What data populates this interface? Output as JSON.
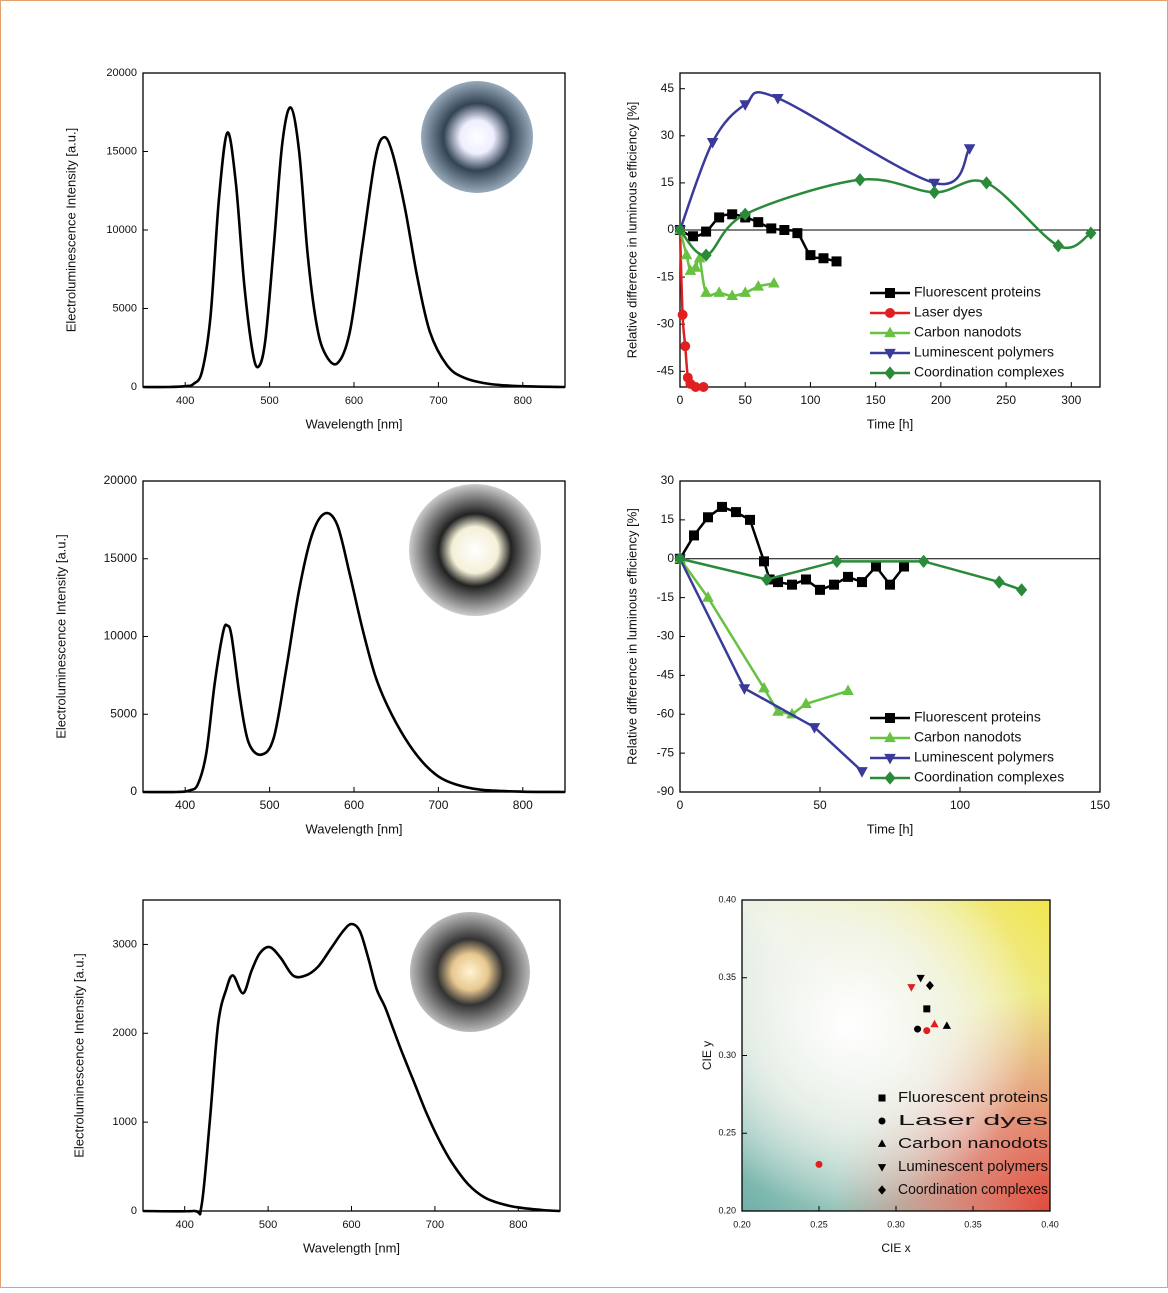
{
  "chart_data": [
    {
      "type": "line",
      "smooth": true,
      "color": "#000000",
      "xlabel": "Wavelength [nm]",
      "ylabel": "Electroluminescence Intensity [a.u.]",
      "xlim": [
        350,
        850
      ],
      "xticks": [
        400,
        500,
        600,
        700,
        800
      ],
      "ylim": [
        0,
        20000
      ],
      "yticks": [
        0,
        5000,
        10000,
        15000,
        20000
      ],
      "x": [
        350,
        380,
        400,
        410,
        420,
        430,
        440,
        450,
        460,
        470,
        480,
        487,
        495,
        505,
        515,
        525,
        535,
        545,
        555,
        565,
        580,
        595,
        610,
        625,
        635,
        645,
        660,
        675,
        690,
        710,
        730,
        760,
        800,
        850
      ],
      "values": [
        0,
        0,
        50,
        200,
        1000,
        4500,
        12000,
        16200,
        13000,
        6500,
        2200,
        1300,
        3000,
        9000,
        15500,
        17800,
        15000,
        8500,
        4200,
        2200,
        1500,
        3500,
        9000,
        14500,
        15900,
        15000,
        11500,
        7000,
        3500,
        1400,
        600,
        200,
        50,
        0
      ]
    },
    {
      "type": "line",
      "smooth": true,
      "legend": "lower right",
      "hline": 0,
      "xlabel": "Time [h]",
      "ylabel": "Relative difference in luminous efficiency [%]",
      "xlim": [
        0,
        322
      ],
      "xticks": [
        0,
        50,
        100,
        150,
        200,
        250,
        300
      ],
      "ylim": [
        -50,
        50
      ],
      "yticks": [
        -45,
        -30,
        -15,
        0,
        15,
        30,
        45
      ],
      "series": [
        {
          "name": "Fluorescent proteins",
          "color": "#000000",
          "marker": "square",
          "x": [
            0,
            10,
            20,
            30,
            40,
            50,
            60,
            70,
            80,
            90,
            100,
            110,
            120
          ],
          "values": [
            0,
            -2,
            -0.5,
            4,
            5,
            4,
            2.5,
            0.5,
            0,
            -1,
            -8,
            -9,
            -10
          ]
        },
        {
          "name": "Laser dyes",
          "color": "#e02020",
          "marker": "circle",
          "x": [
            0,
            2,
            4,
            6,
            8,
            12,
            18
          ],
          "values": [
            0,
            -27,
            -37,
            -47,
            -49,
            -50,
            -50
          ]
        },
        {
          "name": "Carbon nanodots",
          "color": "#66c240",
          "marker": "triangle",
          "x": [
            0,
            5,
            8,
            12,
            15,
            20,
            30,
            40,
            50,
            60,
            72
          ],
          "values": [
            0,
            -8,
            -13,
            -12,
            -9,
            -20,
            -20,
            -21,
            -20,
            -18,
            -17
          ]
        },
        {
          "name": "Luminescent polymers",
          "color": "#3a3a9a",
          "marker": "triangle-down",
          "x": [
            0,
            25,
            50,
            75,
            195,
            222
          ],
          "values": [
            0,
            28,
            40,
            42,
            15,
            26
          ]
        },
        {
          "name": "Coordination complexes",
          "color": "#2a8a3a",
          "marker": "diamond",
          "x": [
            0,
            20,
            50,
            138,
            195,
            235,
            290,
            315
          ],
          "values": [
            0,
            -8,
            5,
            16,
            12,
            15,
            -5,
            -1
          ]
        }
      ]
    },
    {
      "type": "line",
      "smooth": true,
      "color": "#000000",
      "xlabel": "Wavelength [nm]",
      "ylabel": "Electroluminescence Intensity [a.u.]",
      "xlim": [
        350,
        850
      ],
      "xticks": [
        400,
        500,
        600,
        700,
        800
      ],
      "ylim": [
        0,
        20000
      ],
      "yticks": [
        0,
        5000,
        10000,
        15000,
        20000
      ],
      "x": [
        350,
        390,
        405,
        415,
        425,
        435,
        445,
        450,
        455,
        465,
        475,
        490,
        505,
        520,
        535,
        550,
        565,
        580,
        595,
        610,
        625,
        640,
        660,
        680,
        700,
        720,
        750,
        800,
        850
      ],
      "values": [
        0,
        0,
        100,
        500,
        2500,
        7000,
        10300,
        10700,
        10000,
        6000,
        3200,
        2400,
        3500,
        8000,
        13000,
        16500,
        17900,
        17200,
        14000,
        10500,
        7500,
        5500,
        3500,
        2000,
        1000,
        500,
        150,
        20,
        0
      ]
    },
    {
      "type": "line",
      "smooth": false,
      "legend": "lower right",
      "hline": 0,
      "xlabel": "Time [h]",
      "ylabel": "Relative difference in luminous efficiency [%]",
      "xlim": [
        0,
        150
      ],
      "xticks": [
        0,
        50,
        100,
        150
      ],
      "ylim": [
        -90,
        30
      ],
      "yticks": [
        -90,
        -75,
        -60,
        -45,
        -30,
        -15,
        0,
        15,
        30
      ],
      "series": [
        {
          "name": "Fluorescent proteins",
          "color": "#000000",
          "marker": "square",
          "x": [
            0,
            5,
            10,
            15,
            20,
            25,
            30,
            32,
            35,
            40,
            45,
            50,
            55,
            60,
            65,
            70,
            75,
            80
          ],
          "values": [
            0,
            9,
            16,
            20,
            18,
            15,
            -1,
            -8,
            -9,
            -10,
            -8,
            -12,
            -10,
            -7,
            -9,
            -3,
            -10,
            -3
          ]
        },
        {
          "name": "Carbon nanodots",
          "color": "#66c240",
          "marker": "triangle",
          "x": [
            0,
            10,
            30,
            35,
            40,
            45,
            60
          ],
          "values": [
            0,
            -15,
            -50,
            -59,
            -60,
            -56,
            -51
          ]
        },
        {
          "name": "Luminescent polymers",
          "color": "#3a3a9a",
          "marker": "triangle-down",
          "x": [
            0,
            23,
            48,
            65
          ],
          "values": [
            0,
            -50,
            -65,
            -82
          ]
        },
        {
          "name": "Coordination complexes",
          "color": "#2a8a3a",
          "marker": "diamond",
          "x": [
            0,
            31,
            56,
            87,
            114,
            122
          ],
          "values": [
            0,
            -8,
            -1,
            -1,
            -9,
            -12
          ]
        }
      ]
    },
    {
      "type": "line",
      "smooth": true,
      "color": "#000000",
      "xlabel": "Wavelength [nm]",
      "ylabel": "Electroluminescence Intensity [a.u.]",
      "xlim": [
        350,
        850
      ],
      "xticks": [
        400,
        500,
        600,
        700,
        800
      ],
      "ylim": [
        0,
        3500
      ],
      "yticks": [
        0,
        1000,
        2000,
        3000
      ],
      "x": [
        350,
        410,
        420,
        430,
        440,
        450,
        458,
        470,
        480,
        490,
        502,
        515,
        530,
        545,
        560,
        575,
        590,
        600,
        610,
        620,
        630,
        640,
        650,
        660,
        675,
        690,
        705,
        720,
        740,
        760,
        780,
        800,
        830,
        850
      ],
      "values": [
        0,
        0,
        50,
        1000,
        2100,
        2500,
        2650,
        2450,
        2700,
        2900,
        2970,
        2850,
        2650,
        2650,
        2750,
        2950,
        3150,
        3230,
        3150,
        2850,
        2500,
        2300,
        2050,
        1800,
        1450,
        1100,
        800,
        550,
        300,
        150,
        80,
        40,
        10,
        0
      ]
    },
    {
      "type": "scatter",
      "legend": "lower right",
      "xlabel": "CIE x",
      "ylabel": "CIE y",
      "xlim": [
        0.2,
        0.4
      ],
      "xticks": [
        {
          "value": 0.2,
          "label": "0.20"
        },
        0.25,
        {
          "value": 0.3,
          "label": "0.30"
        },
        0.35,
        {
          "value": 0.4,
          "label": "0.40"
        }
      ],
      "ylim": [
        0.2,
        0.4
      ],
      "yticks": [
        {
          "value": 0.2,
          "label": "0.20"
        },
        0.25,
        {
          "value": 0.3,
          "label": "0.30"
        },
        0.35,
        {
          "value": 0.4,
          "label": "0.40"
        }
      ],
      "series": [
        {
          "name": "Fluorescent proteins",
          "color": "#000000",
          "marker": "square",
          "x": [
            0.32
          ],
          "values": [
            0.33
          ],
          "point_colors": [
            "#000000"
          ]
        },
        {
          "name": "Laser dyes",
          "color": "#000000",
          "marker": "circle",
          "x": [
            0.314,
            0.32,
            0.25
          ],
          "values": [
            0.317,
            0.316,
            0.23
          ],
          "point_colors": [
            "#000000",
            "#e02020",
            "#e02020"
          ]
        },
        {
          "name": "Carbon nanodots",
          "color": "#000000",
          "marker": "triangle",
          "x": [
            0.325,
            0.333
          ],
          "values": [
            0.32,
            0.319
          ],
          "point_colors": [
            "#e02020",
            "#000000"
          ]
        },
        {
          "name": "Luminescent polymers",
          "color": "#000000",
          "marker": "triangle-down",
          "x": [
            0.31,
            0.316
          ],
          "values": [
            0.344,
            0.35
          ],
          "point_colors": [
            "#e02020",
            "#000000"
          ]
        },
        {
          "name": "Coordination complexes",
          "color": "#000000",
          "marker": "diamond",
          "x": [
            0.322
          ],
          "values": [
            0.345
          ],
          "point_colors": [
            "#000000"
          ]
        }
      ]
    }
  ]
}
